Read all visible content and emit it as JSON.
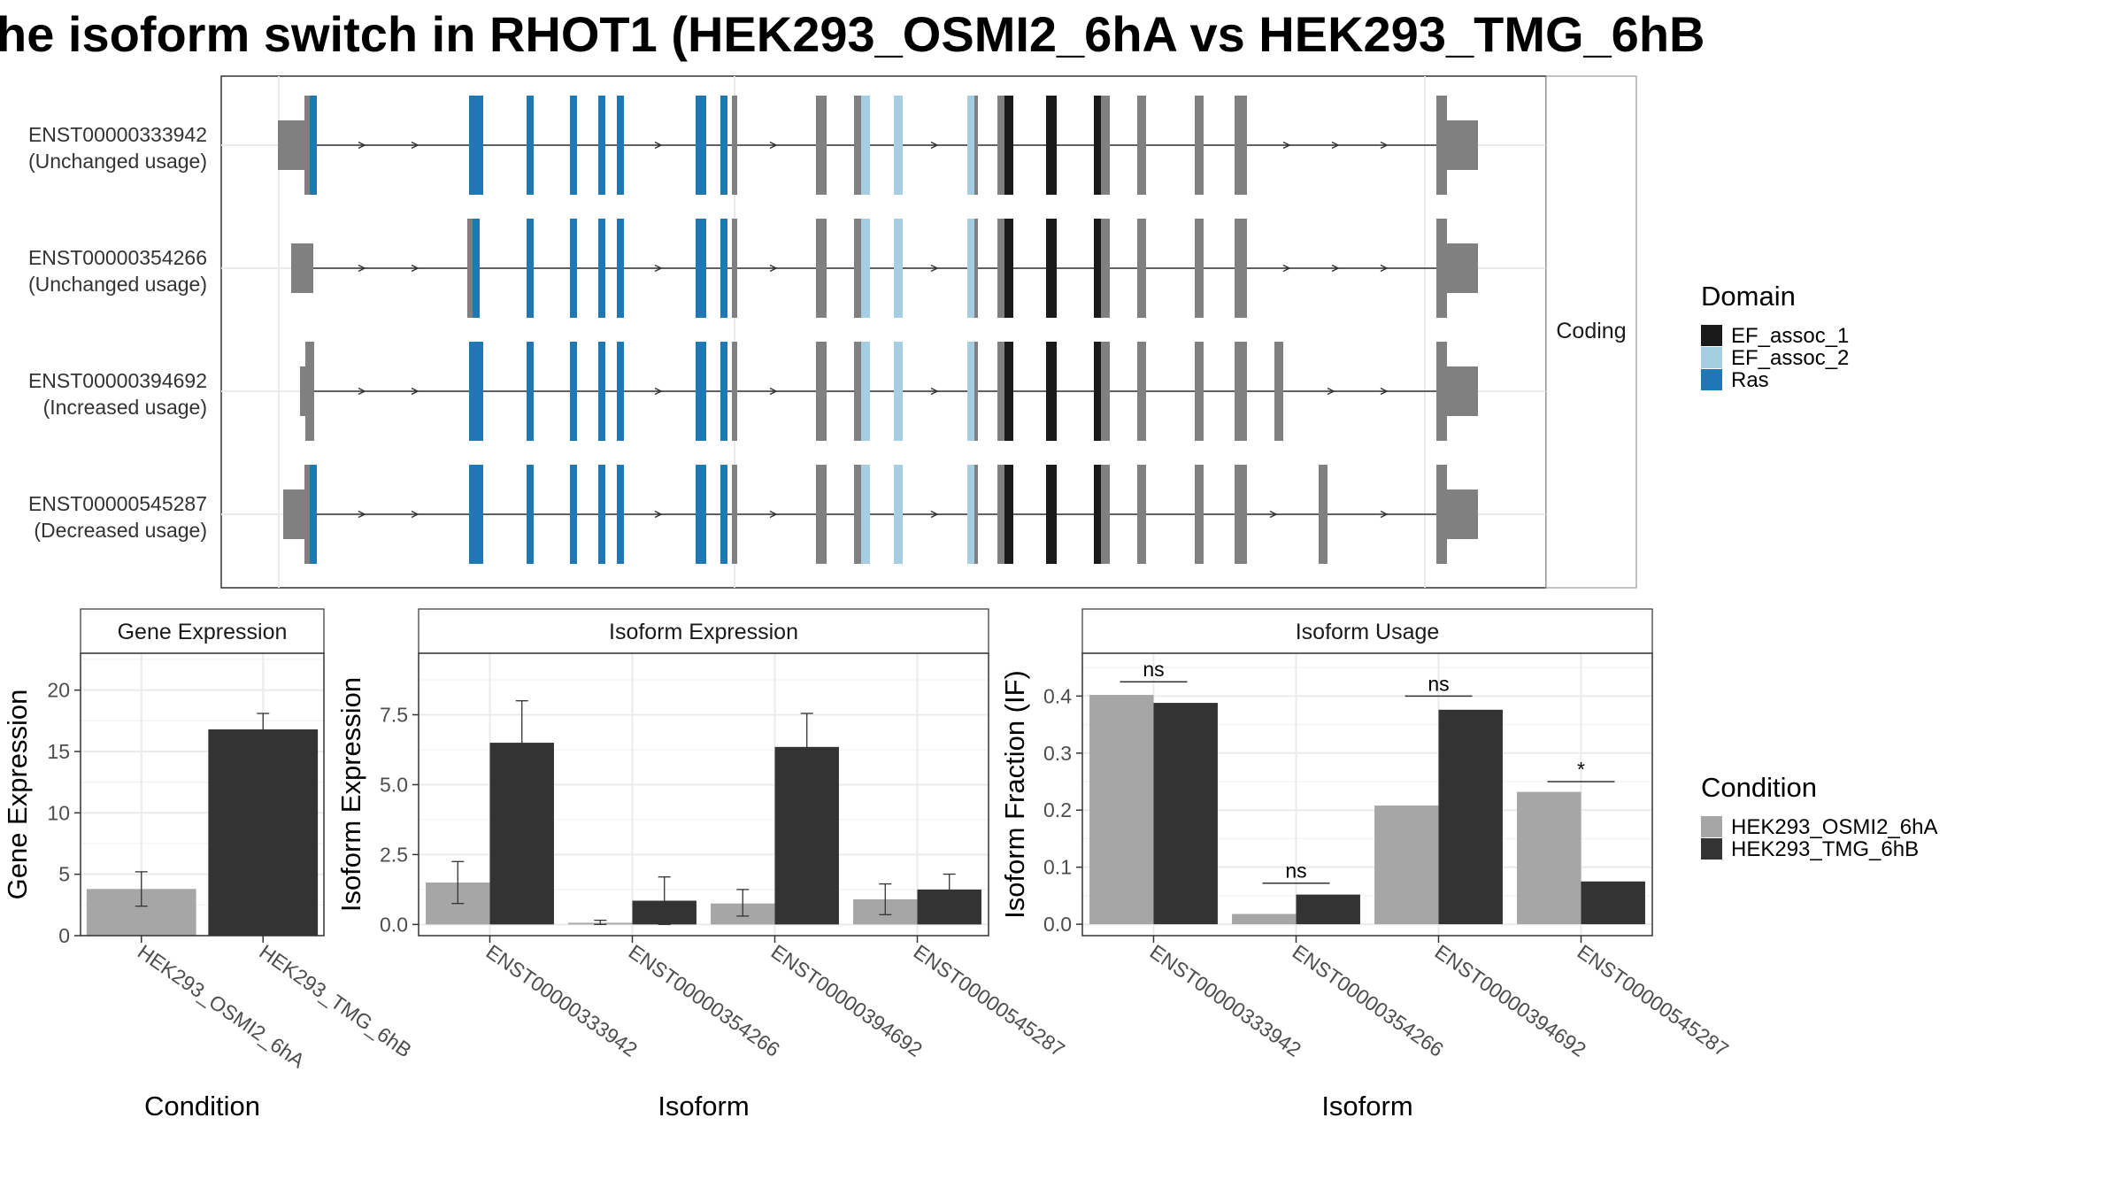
{
  "title": "he isoform switch in RHOT1 (HEK293_OSMI2_6hA vs HEK293_TMG_6hB",
  "colors": {
    "utr": "#808080",
    "noncoding_exon": "#808080",
    "Ras": "#1f78b4",
    "EF_assoc_2": "#a6cee3",
    "EF_assoc_1": "#1a1a1a",
    "OSMI2": "#a6a6a6",
    "TMG": "#333333"
  },
  "structure": {
    "strip_label": "Coding",
    "isoforms": [
      {
        "id": "ENST00000333942",
        "usage": "(Unchanged usage)"
      },
      {
        "id": "ENST00000354266",
        "usage": "(Unchanged usage)"
      },
      {
        "id": "ENST00000394692",
        "usage": "(Increased usage)"
      },
      {
        "id": "ENST00000545287",
        "usage": "(Decreased usage)"
      }
    ]
  },
  "legend_domain": {
    "title": "Domain",
    "items": [
      {
        "label": "EF_assoc_1",
        "color": "#1a1a1a"
      },
      {
        "label": "EF_assoc_2",
        "color": "#a6cee3"
      },
      {
        "label": "Ras",
        "color": "#1f78b4"
      }
    ]
  },
  "legend_condition": {
    "title": "Condition",
    "items": [
      {
        "label": "HEK293_OSMI2_6hA",
        "color": "#a6a6a6"
      },
      {
        "label": "HEK293_TMG_6hB",
        "color": "#333333"
      }
    ]
  },
  "chart_data": [
    {
      "type": "bar",
      "panel": "Gene Expression",
      "categories": [
        "HEK293_OSMI2_6hA",
        "HEK293_TMG_6hB"
      ],
      "values": [
        3.8,
        16.8
      ],
      "error_low": [
        2.4,
        15.5
      ],
      "error_high": [
        5.2,
        18.1
      ],
      "ylim": [
        0,
        23
      ],
      "yticks": [
        0,
        5,
        10,
        15,
        20
      ],
      "ytick_labels": [
        "0",
        "5",
        "10",
        "15",
        "20"
      ],
      "xlabel": "Condition",
      "ylabel": "Gene Expression"
    },
    {
      "type": "bar",
      "panel": "Isoform Expression",
      "categories": [
        "ENST00000333942",
        "ENST00000354266",
        "ENST00000394692",
        "ENST00000545287"
      ],
      "series": [
        {
          "name": "HEK293_OSMI2_6hA",
          "values": [
            1.5,
            0.06,
            0.75,
            0.9
          ],
          "error_low": [
            0.75,
            0.0,
            0.3,
            0.35
          ],
          "error_high": [
            2.25,
            0.15,
            1.25,
            1.45
          ]
        },
        {
          "name": "HEK293_TMG_6hB",
          "values": [
            6.5,
            0.85,
            6.35,
            1.25
          ],
          "error_low": [
            4.9,
            0.0,
            5.2,
            0.75
          ],
          "error_high": [
            8.0,
            1.7,
            7.55,
            1.8
          ]
        }
      ],
      "ylim": [
        -0.4,
        9.7
      ],
      "yticks": [
        0,
        2.5,
        5,
        7.5
      ],
      "ytick_labels": [
        "0.0",
        "2.5",
        "5.0",
        "7.5"
      ],
      "xlabel": "Isoform",
      "ylabel": "Isoform Expression"
    },
    {
      "type": "bar",
      "panel": "Isoform Usage",
      "categories": [
        "ENST00000333942",
        "ENST00000354266",
        "ENST00000394692",
        "ENST00000545287"
      ],
      "series": [
        {
          "name": "HEK293_OSMI2_6hA",
          "values": [
            0.402,
            0.018,
            0.208,
            0.232
          ]
        },
        {
          "name": "HEK293_TMG_6hB",
          "values": [
            0.388,
            0.052,
            0.376,
            0.075
          ]
        }
      ],
      "significance": [
        "ns",
        "ns",
        "ns",
        "*"
      ],
      "sig_y": [
        0.425,
        0.072,
        0.4,
        0.25
      ],
      "ylim": [
        -0.02,
        0.475
      ],
      "yticks": [
        0,
        0.1,
        0.2,
        0.3,
        0.4
      ],
      "ytick_labels": [
        "0.0",
        "0.1",
        "0.2",
        "0.3",
        "0.4"
      ],
      "xlabel": "Isoform",
      "ylabel": "Isoform Fraction (IF)"
    }
  ]
}
